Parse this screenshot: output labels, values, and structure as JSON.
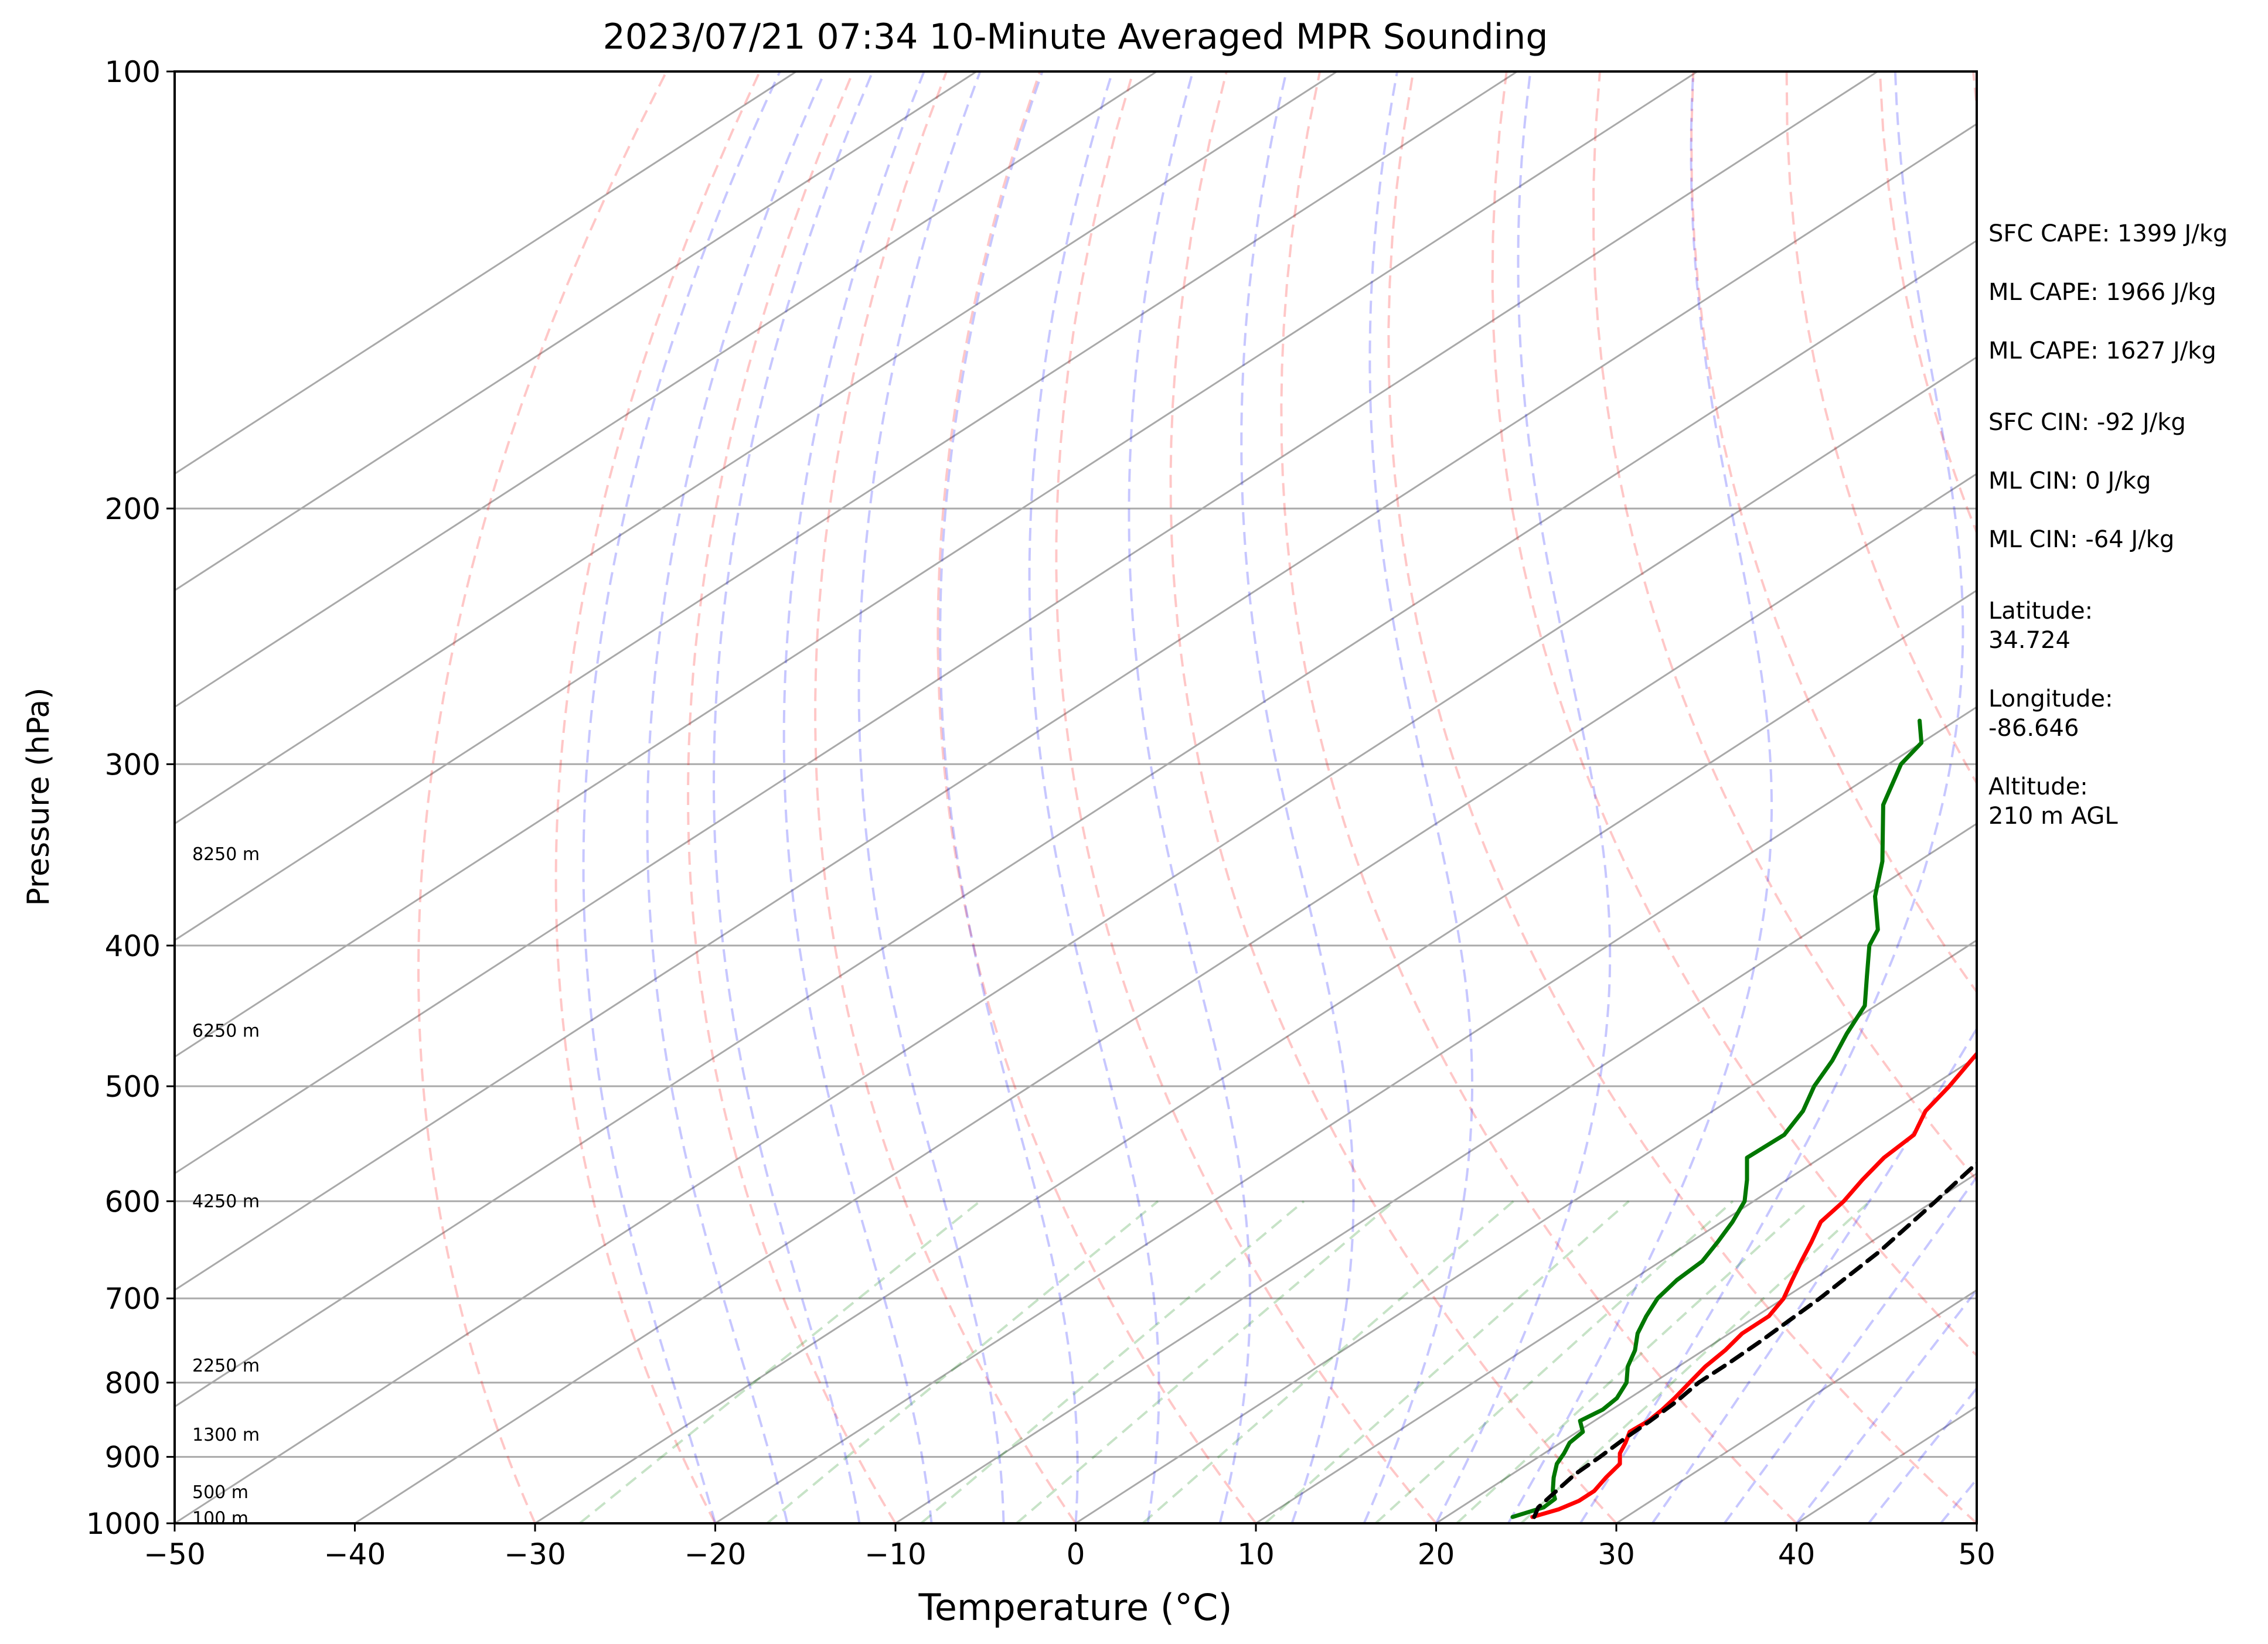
{
  "chart_data": {
    "type": "line",
    "title": "2023/07/21 07:34 10-Minute Averaged MPR Sounding",
    "xlabel": "Temperature (°C)",
    "ylabel": "Pressure (hPa)",
    "xlim": [
      -50,
      50
    ],
    "ylim": [
      1000,
      100
    ],
    "y_scale": "log",
    "skew": true,
    "grid": true,
    "x_ticks": [
      "−50",
      "−40",
      "−30",
      "−20",
      "−10",
      "0",
      "10",
      "20",
      "30",
      "40",
      "50"
    ],
    "x_tick_values": [
      -50,
      -40,
      -30,
      -20,
      -10,
      0,
      10,
      20,
      30,
      40,
      50
    ],
    "y_ticks": [
      "100",
      "200",
      "300",
      "400",
      "500",
      "600",
      "700",
      "800",
      "900",
      "1000"
    ],
    "y_tick_values": [
      100,
      200,
      300,
      400,
      500,
      600,
      700,
      800,
      900,
      1000
    ],
    "height_labels": [
      {
        "label": "100 m",
        "p": 992
      },
      {
        "label": "500 m",
        "p": 952
      },
      {
        "label": "1300 m",
        "p": 869
      },
      {
        "label": "2250 m",
        "p": 779
      },
      {
        "label": "4250 m",
        "p": 600
      },
      {
        "label": "6250 m",
        "p": 458
      },
      {
        "label": "8250 m",
        "p": 346
      }
    ],
    "series": [
      {
        "color": "#ff0000",
        "points": [
          [
            990,
            24.8
          ],
          [
            978,
            25.6
          ],
          [
            965,
            26.0
          ],
          [
            950,
            26.0
          ],
          [
            930,
            25.5
          ],
          [
            910,
            25.1
          ],
          [
            895,
            24.2
          ],
          [
            880,
            23.6
          ],
          [
            865,
            22.9
          ],
          [
            850,
            23.0
          ],
          [
            835,
            22.8
          ],
          [
            820,
            22.5
          ],
          [
            800,
            22.0
          ],
          [
            780,
            21.5
          ],
          [
            760,
            21.2
          ],
          [
            740,
            20.7
          ],
          [
            720,
            20.7
          ],
          [
            700,
            20.0
          ],
          [
            680,
            18.9
          ],
          [
            660,
            17.8
          ],
          [
            640,
            16.7
          ],
          [
            620,
            15.5
          ],
          [
            600,
            15.0
          ],
          [
            580,
            14.2
          ],
          [
            560,
            13.5
          ],
          [
            540,
            13.2
          ],
          [
            520,
            11.8
          ],
          [
            500,
            11.0
          ],
          [
            480,
            10.0
          ],
          [
            460,
            9.0
          ],
          [
            440,
            8.4
          ],
          [
            420,
            7.0
          ],
          [
            400,
            6.0
          ],
          [
            380,
            4.0
          ],
          [
            360,
            2.2
          ],
          [
            340,
            0.3
          ],
          [
            320,
            -2.4
          ],
          [
            300,
            -5.0
          ],
          [
            280,
            -8.0
          ]
        ]
      },
      {
        "color": "#007700",
        "points": [
          [
            990,
            23.7
          ],
          [
            975,
            24.6
          ],
          [
            962,
            24.5
          ],
          [
            950,
            23.7
          ],
          [
            930,
            22.6
          ],
          [
            910,
            21.6
          ],
          [
            895,
            21.1
          ],
          [
            880,
            20.5
          ],
          [
            865,
            20.3
          ],
          [
            850,
            19.2
          ],
          [
            835,
            19.5
          ],
          [
            820,
            19.3
          ],
          [
            800,
            18.5
          ],
          [
            780,
            17.2
          ],
          [
            760,
            16.2
          ],
          [
            740,
            14.9
          ],
          [
            720,
            13.9
          ],
          [
            700,
            13.0
          ],
          [
            680,
            12.5
          ],
          [
            660,
            12.3
          ],
          [
            640,
            11.5
          ],
          [
            620,
            10.6
          ],
          [
            600,
            9.5
          ],
          [
            580,
            7.8
          ],
          [
            560,
            5.9
          ],
          [
            540,
            6.0
          ],
          [
            520,
            5.0
          ],
          [
            500,
            3.5
          ],
          [
            480,
            2.3
          ],
          [
            460,
            0.8
          ],
          [
            440,
            -0.6
          ],
          [
            420,
            -3.0
          ],
          [
            400,
            -5.5
          ],
          [
            390,
            -6.4
          ],
          [
            370,
            -9.4
          ],
          [
            350,
            -12.0
          ],
          [
            320,
            -16.8
          ],
          [
            300,
            -19.3
          ],
          [
            290,
            -20.0
          ],
          [
            280,
            -22.0
          ]
        ]
      },
      {
        "color": "#000000",
        "dashed": true,
        "points": [
          [
            990,
            24.9
          ],
          [
            975,
            24.3
          ],
          [
            950,
            23.9
          ],
          [
            925,
            23.5
          ],
          [
            900,
            23.4
          ],
          [
            875,
            23.2
          ],
          [
            850,
            23.1
          ],
          [
            825,
            22.9
          ],
          [
            800,
            22.5
          ],
          [
            775,
            22.5
          ],
          [
            750,
            22.4
          ],
          [
            700,
            22.0
          ],
          [
            650,
            21.3
          ],
          [
            600,
            20.1
          ],
          [
            550,
            18.7
          ],
          [
            500,
            16.7
          ],
          [
            450,
            14.2
          ],
          [
            400,
            10.9
          ],
          [
            350,
            6.3
          ],
          [
            300,
            0.1
          ],
          [
            280,
            -3.3
          ]
        ]
      }
    ],
    "annotations": [
      "SFC CAPE: 1399 J/kg",
      "ML CAPE: 1966 J/kg",
      "ML CAPE: 1627 J/kg",
      "SFC CIN: -92 J/kg",
      "ML CIN: 0 J/kg",
      "ML CIN: -64 J/kg",
      "Latitude:\n34.724",
      "Longitude:\n-86.646",
      "Altitude:\n210 m AGL"
    ]
  }
}
